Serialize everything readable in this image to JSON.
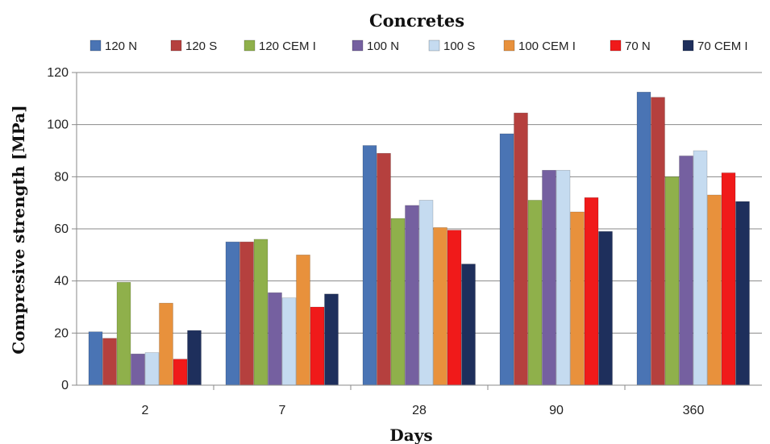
{
  "chart_data": {
    "type": "bar",
    "title": "Concretes",
    "xlabel": "Days",
    "ylabel": "Compresive strength [MPa]",
    "ylim": [
      0,
      120
    ],
    "yticks": [
      0,
      20,
      40,
      60,
      80,
      100,
      120
    ],
    "grid": true,
    "legend": "top",
    "categories": [
      "2",
      "7",
      "28",
      "90",
      "360"
    ],
    "series": [
      {
        "name": "120 N",
        "color": "#4a74b4",
        "values": [
          20.5,
          55,
          92,
          96.5,
          112.5
        ]
      },
      {
        "name": "120 S",
        "color": "#b5403e",
        "values": [
          18,
          55,
          89,
          104.5,
          110.5
        ]
      },
      {
        "name": "120 CEM I",
        "color": "#8fb04b",
        "values": [
          39.5,
          56,
          64,
          71,
          80
        ]
      },
      {
        "name": "100 N",
        "color": "#7560a0",
        "values": [
          12,
          35.5,
          69,
          82.5,
          88
        ]
      },
      {
        "name": "100 S",
        "color": "#c5dbf0",
        "values": [
          12.5,
          33.5,
          71,
          82.5,
          90
        ]
      },
      {
        "name": "100 CEM I",
        "color": "#e8913c",
        "values": [
          31.5,
          50,
          60.5,
          66.5,
          73
        ]
      },
      {
        "name": "70 N",
        "color": "#f01a1a",
        "values": [
          10,
          30,
          59.5,
          72,
          81.5
        ]
      },
      {
        "name": "70 CEM I",
        "color": "#1e2f5c",
        "values": [
          21,
          35,
          46.5,
          59,
          70.5
        ]
      }
    ]
  }
}
